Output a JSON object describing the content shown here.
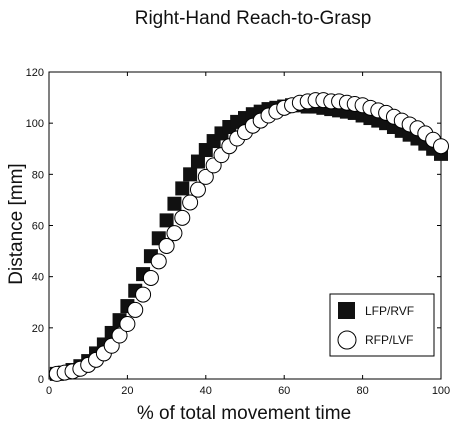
{
  "chart_data": {
    "type": "scatter",
    "title": "Right-Hand Reach-to-Grasp",
    "xlabel": "% of total movement time",
    "ylabel": "Distance [mm]",
    "xlim": [
      0,
      100
    ],
    "ylim": [
      0,
      120
    ],
    "xticks": [
      0,
      20,
      40,
      60,
      80,
      100
    ],
    "yticks": [
      0,
      20,
      40,
      60,
      80,
      100,
      120
    ],
    "grid": false,
    "legend_position": "lower-right",
    "x": [
      2,
      4,
      6,
      8,
      10,
      12,
      14,
      16,
      18,
      20,
      22,
      24,
      26,
      28,
      30,
      32,
      34,
      36,
      38,
      40,
      42,
      44,
      46,
      48,
      50,
      52,
      54,
      56,
      58,
      60,
      62,
      64,
      66,
      68,
      70,
      72,
      74,
      76,
      78,
      80,
      82,
      84,
      86,
      88,
      90,
      92,
      94,
      96,
      98,
      100
    ],
    "series": [
      {
        "name": "LFP/RVF",
        "marker": "square",
        "color": "#111111",
        "values": [
          2,
          2.5,
          3.5,
          5,
          7,
          10,
          13.5,
          18,
          23,
          28.5,
          34.5,
          41,
          48,
          55,
          62,
          68.5,
          74.5,
          80,
          85,
          89.5,
          93,
          96,
          98.5,
          100.5,
          102,
          103.5,
          104.5,
          105.5,
          106,
          106.5,
          107,
          107,
          106.5,
          106.5,
          106,
          105.5,
          105,
          104.5,
          104,
          103,
          102,
          101,
          100,
          98.5,
          97,
          95.5,
          94,
          92,
          90,
          88
        ]
      },
      {
        "name": "RFP/LVF",
        "marker": "circle",
        "color": "#ffffff",
        "values": [
          2,
          2.5,
          3,
          4,
          5.5,
          7.5,
          10,
          13,
          17,
          21.5,
          27,
          33,
          39.5,
          46,
          52,
          57,
          63,
          69,
          74,
          79,
          83.5,
          87.5,
          91,
          94,
          96.5,
          99,
          101,
          103,
          104.5,
          106,
          107,
          108,
          108.5,
          109,
          109,
          108.5,
          108.5,
          108,
          107.5,
          107,
          106,
          105,
          104,
          102.5,
          101,
          99.5,
          98,
          96,
          93.5,
          91
        ]
      }
    ]
  }
}
